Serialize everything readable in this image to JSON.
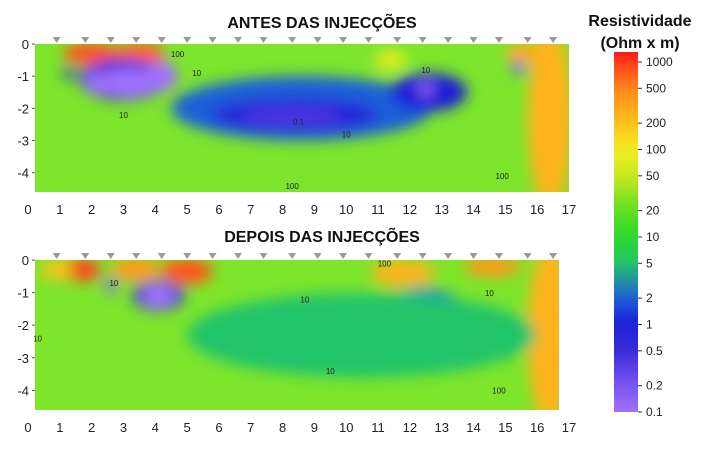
{
  "chart_data": [
    {
      "type": "heatmap",
      "title": "ANTES DAS INJECÇÕES",
      "xlabel": "",
      "ylabel": "",
      "xlim": [
        0,
        17
      ],
      "ylim": [
        -4.6,
        0
      ],
      "xticks": [
        "0",
        "1",
        "2",
        "3",
        "4",
        "5",
        "6",
        "7",
        "8",
        "9",
        "10",
        "11",
        "12",
        "13",
        "14",
        "15",
        "16",
        "17"
      ],
      "yticks": [
        "0",
        "-1",
        "-2",
        "-3",
        "-4"
      ],
      "electrodes": [
        0.9,
        1.8,
        2.6,
        3.4,
        4.2,
        5.0,
        5.8,
        6.6,
        7.4,
        8.3,
        9.1,
        9.9,
        10.7,
        11.6,
        12.4,
        13.2,
        14.0,
        14.8,
        15.7,
        16.5
      ],
      "contour_labels": [
        {
          "text": "100",
          "x": 4.7,
          "y": -0.4
        },
        {
          "text": "10",
          "x": 5.3,
          "y": -1.0
        },
        {
          "text": "10",
          "x": 12.5,
          "y": -0.9
        },
        {
          "text": "10",
          "x": 3.0,
          "y": -2.3
        },
        {
          "text": "0.1",
          "x": 8.5,
          "y": -2.5
        },
        {
          "text": "10",
          "x": 10.0,
          "y": -2.9
        },
        {
          "text": "100",
          "x": 8.3,
          "y": -4.5
        },
        {
          "text": "100",
          "x": 14.9,
          "y": -4.2
        }
      ],
      "anomalies": [
        {
          "x": 2.0,
          "y": -0.3,
          "rx": 0.9,
          "ry": 0.35,
          "value": 800
        },
        {
          "x": 3.5,
          "y": -0.3,
          "rx": 0.8,
          "ry": 0.35,
          "value": 700
        },
        {
          "x": 15.6,
          "y": -0.3,
          "rx": 0.6,
          "ry": 0.3,
          "value": 300
        },
        {
          "x": 16.4,
          "y": -2.3,
          "rx": 0.7,
          "ry": 2.8,
          "value": 250
        },
        {
          "x": 11.4,
          "y": -0.5,
          "rx": 0.5,
          "ry": 0.3,
          "value": 80
        },
        {
          "x": 3.0,
          "y": -1.1,
          "rx": 1.4,
          "ry": 0.65,
          "value": 0.5
        },
        {
          "x": 2.2,
          "y": -1.2,
          "rx": 0.4,
          "ry": 0.35,
          "value": 0.1
        },
        {
          "x": 3.2,
          "y": -1.2,
          "rx": 0.9,
          "ry": 0.45,
          "value": 0.1
        },
        {
          "x": 4.2,
          "y": -1.0,
          "rx": 0.5,
          "ry": 0.45,
          "value": 0.1
        },
        {
          "x": 8.6,
          "y": -2.0,
          "rx": 4.1,
          "ry": 1.0,
          "value": 2
        },
        {
          "x": 8.4,
          "y": -2.2,
          "rx": 2.6,
          "ry": 0.5,
          "value": 0.8
        },
        {
          "x": 8.3,
          "y": -2.25,
          "rx": 1.6,
          "ry": 0.3,
          "value": 0.4
        },
        {
          "x": 12.6,
          "y": -1.5,
          "rx": 1.2,
          "ry": 0.6,
          "value": 1
        },
        {
          "x": 12.5,
          "y": -1.4,
          "rx": 0.25,
          "ry": 0.25,
          "value": 0.15
        },
        {
          "x": 15.4,
          "y": -0.75,
          "rx": 0.2,
          "ry": 0.2,
          "value": 0.2
        },
        {
          "x": 1.3,
          "y": -0.9,
          "rx": 0.2,
          "ry": 0.15,
          "value": 1
        }
      ]
    },
    {
      "type": "heatmap",
      "title": "DEPOIS DAS INJECÇÕES",
      "xlabel": "",
      "ylabel": "",
      "xlim": [
        0,
        17
      ],
      "ylim": [
        -4.6,
        0
      ],
      "xticks": [
        "0",
        "1",
        "2",
        "3",
        "4",
        "5",
        "6",
        "7",
        "8",
        "9",
        "10",
        "11",
        "12",
        "13",
        "14",
        "15",
        "16",
        "17"
      ],
      "yticks": [
        "0",
        "-1",
        "-2",
        "-3",
        "-4"
      ],
      "electrodes": [
        0.9,
        1.8,
        2.6,
        3.4,
        4.2,
        5.0,
        5.8,
        6.6,
        7.4,
        8.3,
        9.1,
        9.9,
        10.7,
        11.6,
        12.4,
        13.2,
        14.0,
        14.8,
        15.7,
        16.5
      ],
      "contour_labels": [
        {
          "text": "100",
          "x": 11.2,
          "y": -0.2
        },
        {
          "text": "10",
          "x": 2.7,
          "y": -0.8
        },
        {
          "text": "10",
          "x": 8.7,
          "y": -1.3
        },
        {
          "text": "10",
          "x": 14.5,
          "y": -1.1
        },
        {
          "text": "10",
          "x": 0.3,
          "y": -2.5
        },
        {
          "text": "10",
          "x": 9.5,
          "y": -3.5
        },
        {
          "text": "100",
          "x": 14.8,
          "y": -4.1
        }
      ],
      "anomalies": [
        {
          "x": 1.7,
          "y": -0.3,
          "rx": 0.6,
          "ry": 0.35,
          "value": 900
        },
        {
          "x": 0.9,
          "y": -0.3,
          "rx": 0.5,
          "ry": 0.3,
          "value": 200
        },
        {
          "x": 3.4,
          "y": -0.3,
          "rx": 0.8,
          "ry": 0.35,
          "value": 400
        },
        {
          "x": 5.0,
          "y": -0.35,
          "rx": 0.8,
          "ry": 0.4,
          "value": 800
        },
        {
          "x": 11.8,
          "y": -0.4,
          "rx": 1.0,
          "ry": 0.4,
          "value": 250
        },
        {
          "x": 14.6,
          "y": -0.2,
          "rx": 0.9,
          "ry": 0.3,
          "value": 400
        },
        {
          "x": 16.4,
          "y": -2.3,
          "rx": 0.7,
          "ry": 2.8,
          "value": 250
        },
        {
          "x": 4.1,
          "y": -1.1,
          "rx": 0.8,
          "ry": 0.45,
          "value": 1
        },
        {
          "x": 4.1,
          "y": -1.1,
          "rx": 0.55,
          "ry": 0.35,
          "value": 0.1
        },
        {
          "x": 2.6,
          "y": -0.8,
          "rx": 0.2,
          "ry": 0.2,
          "value": 0.15
        },
        {
          "x": 9.2,
          "y": -2.4,
          "rx": 2.0,
          "ry": 0.7,
          "value": 2
        },
        {
          "x": 9.3,
          "y": -2.5,
          "rx": 1.2,
          "ry": 0.4,
          "value": 1
        },
        {
          "x": 12.4,
          "y": -1.4,
          "rx": 1.2,
          "ry": 0.5,
          "value": 2
        },
        {
          "x": 10.5,
          "y": -2.3,
          "rx": 5.5,
          "ry": 1.3,
          "value": 5
        }
      ]
    }
  ],
  "colorbar": {
    "title_line1": "Resistividade",
    "title_line2": "(Ohm x m)",
    "scale": "log",
    "range": [
      0.1,
      1300
    ],
    "ticks": [
      {
        "value": 1000,
        "label": "1000"
      },
      {
        "value": 500,
        "label": "500"
      },
      {
        "value": 200,
        "label": "200"
      },
      {
        "value": 100,
        "label": "100"
      },
      {
        "value": 50,
        "label": "50"
      },
      {
        "value": 20,
        "label": "20"
      },
      {
        "value": 10,
        "label": "10"
      },
      {
        "value": 5,
        "label": "5"
      },
      {
        "value": 2,
        "label": "2"
      },
      {
        "value": 1,
        "label": "1"
      },
      {
        "value": 0.5,
        "label": "0.5"
      },
      {
        "value": 0.2,
        "label": "0.2"
      },
      {
        "value": 0.1,
        "label": "0.1"
      }
    ]
  },
  "colors": {
    "background_field": "#7de52c",
    "electrode_marker": "#9a9a9a"
  }
}
